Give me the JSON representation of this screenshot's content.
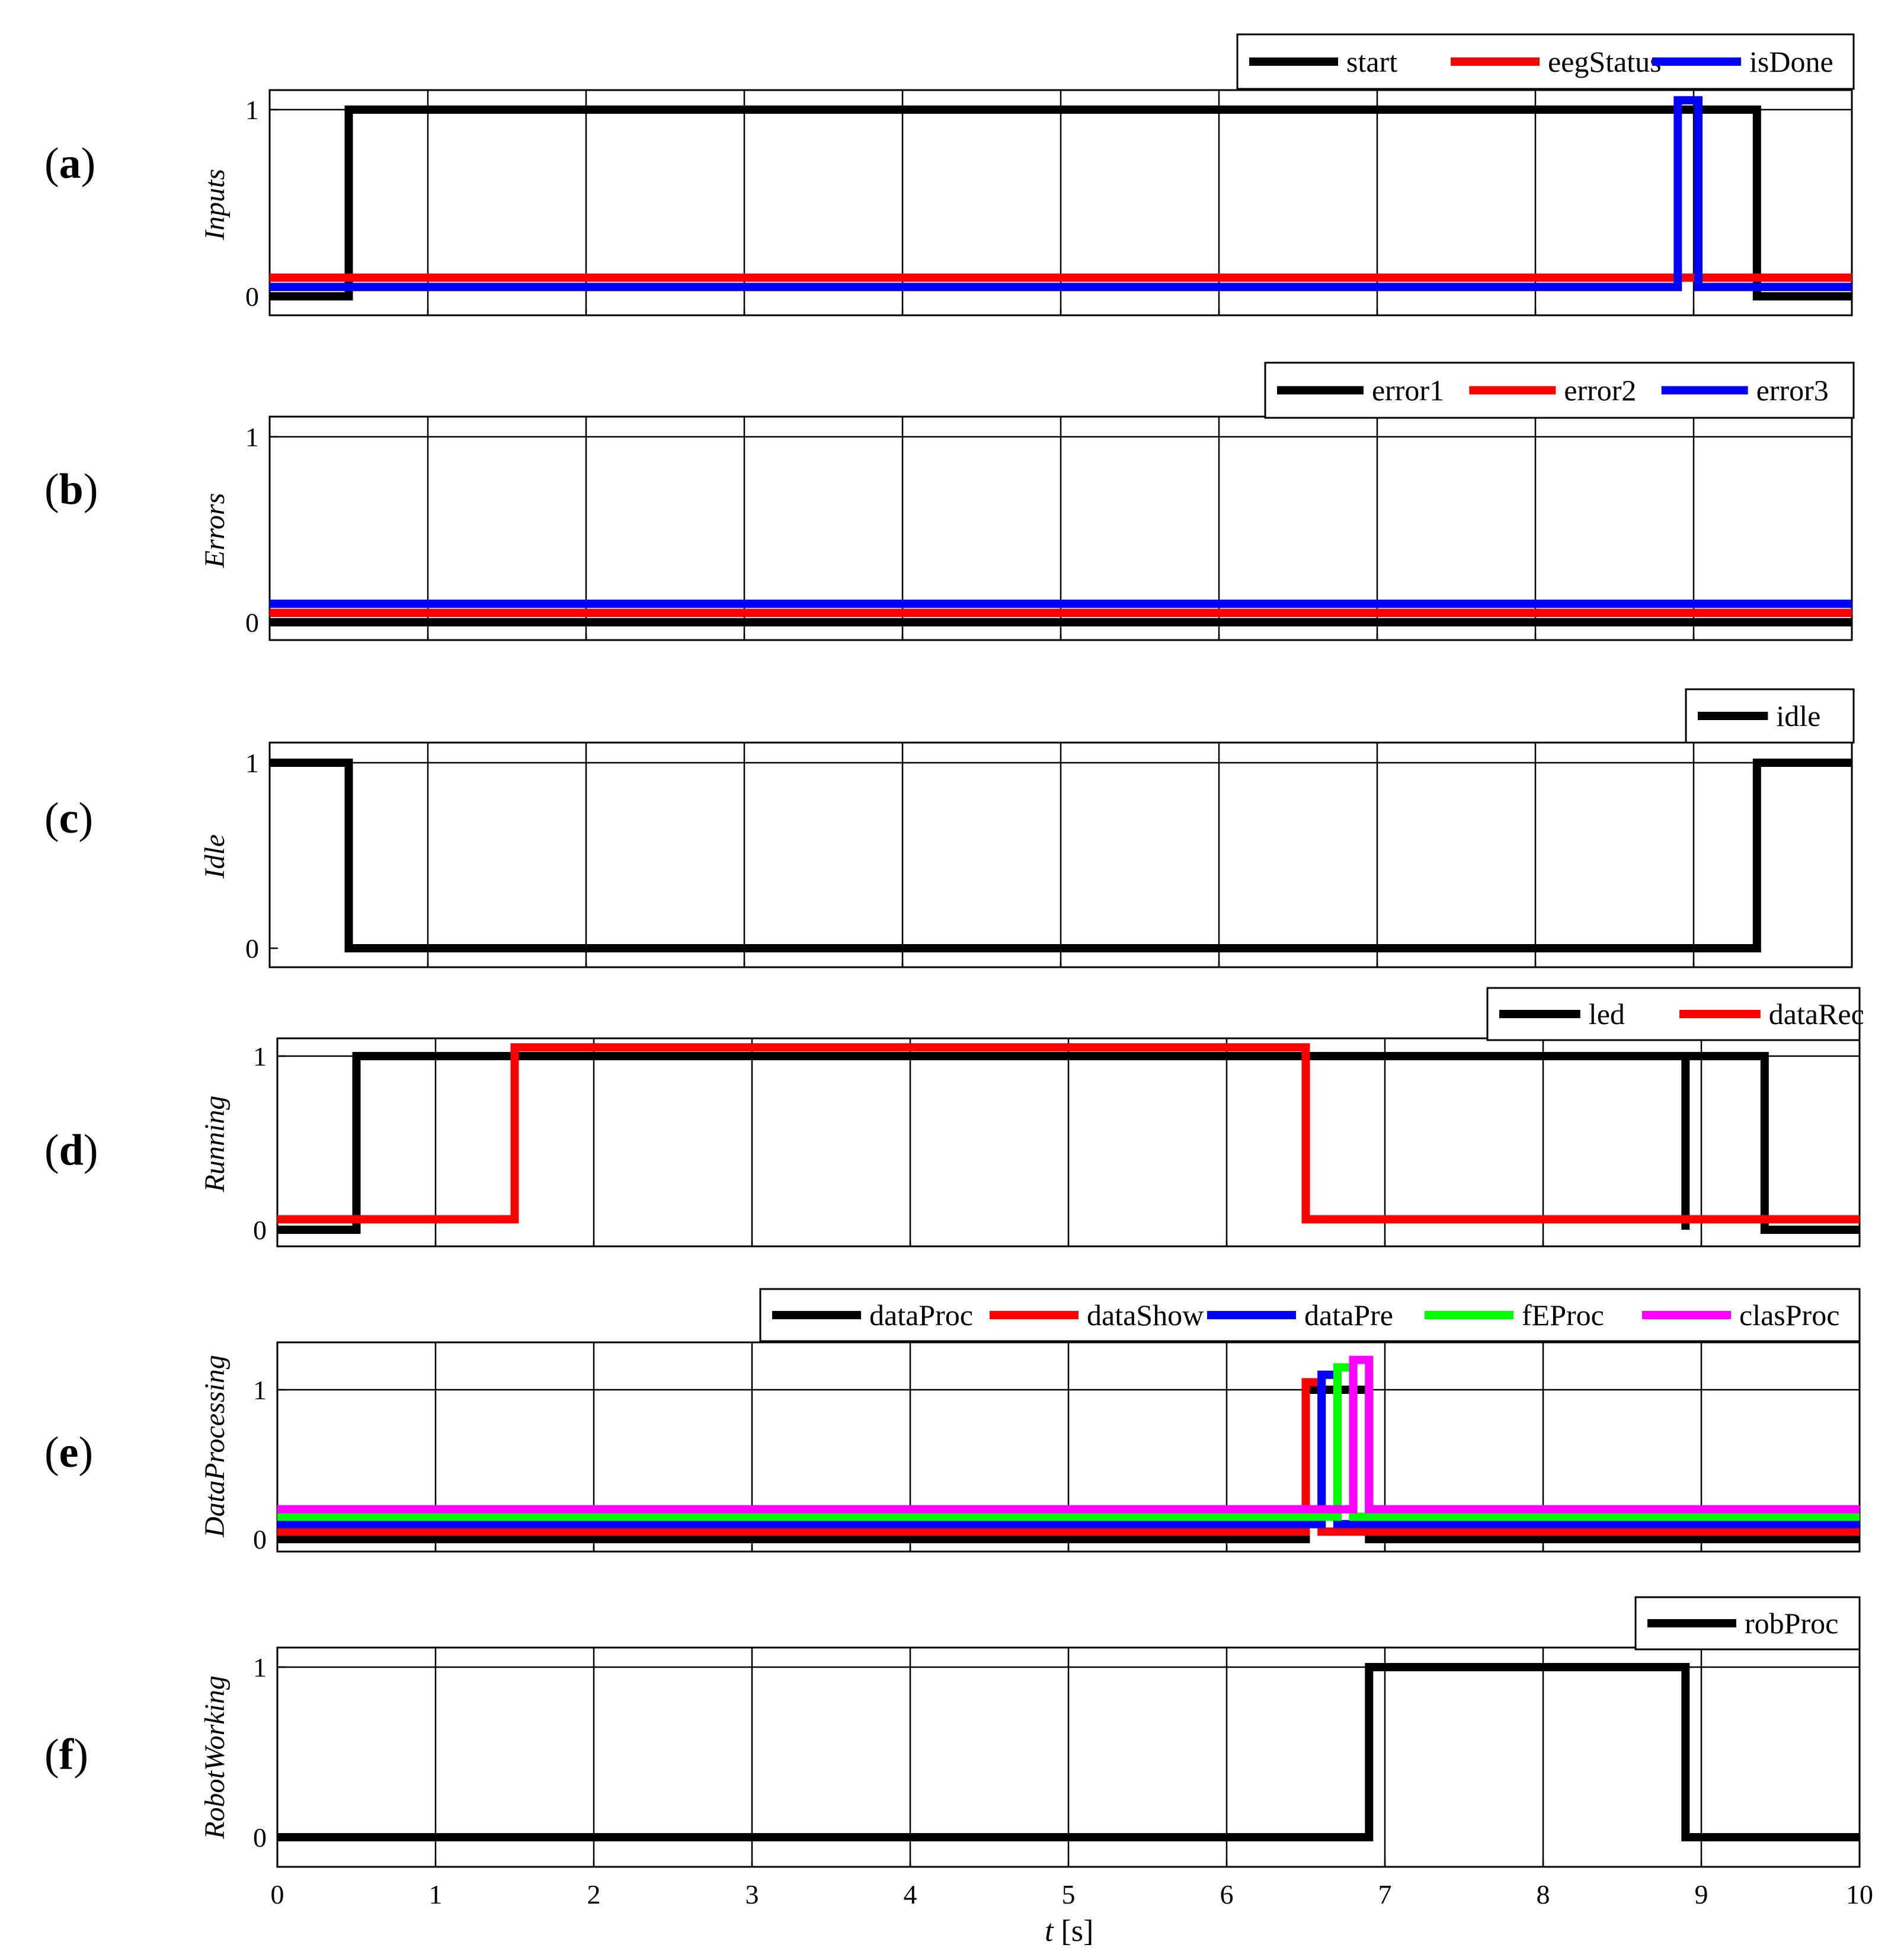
{
  "chart_data": [
    {
      "type": "line",
      "panel_label": "(a)",
      "ylabel": "Inputs",
      "xlim": [
        0,
        10
      ],
      "ylim": [
        0,
        1
      ],
      "y_ticks": [
        "0",
        "1"
      ],
      "grid": true,
      "legend_position": "top-right",
      "series": [
        {
          "name": "start",
          "color": "#000000",
          "points": [
            [
              0,
              0
            ],
            [
              0.5,
              0
            ],
            [
              0.5,
              1
            ],
            [
              9.4,
              1
            ],
            [
              9.4,
              0
            ],
            [
              10,
              0
            ]
          ]
        },
        {
          "name": "eegStatus",
          "color": "#ff0000",
          "points": [
            [
              0,
              0.1
            ],
            [
              10,
              0.1
            ]
          ]
        },
        {
          "name": "isDone",
          "color": "#0000ff",
          "points": [
            [
              0,
              0.05
            ],
            [
              8.9,
              0.05
            ],
            [
              8.9,
              1.05
            ],
            [
              9.03,
              1.05
            ],
            [
              9.03,
              0.05
            ],
            [
              10,
              0.05
            ]
          ]
        }
      ]
    },
    {
      "type": "line",
      "panel_label": "(b)",
      "ylabel": "Errors",
      "xlim": [
        0,
        10
      ],
      "ylim": [
        0,
        1
      ],
      "y_ticks": [
        "0",
        "1"
      ],
      "grid": true,
      "legend_position": "top-right",
      "series": [
        {
          "name": "error1",
          "color": "#000000",
          "points": [
            [
              0,
              0
            ],
            [
              10,
              0
            ]
          ]
        },
        {
          "name": "error2",
          "color": "#ff0000",
          "points": [
            [
              0,
              0.05
            ],
            [
              10,
              0.05
            ]
          ]
        },
        {
          "name": "error3",
          "color": "#0000ff",
          "points": [
            [
              0,
              0.1
            ],
            [
              10,
              0.1
            ]
          ]
        }
      ]
    },
    {
      "type": "line",
      "panel_label": "(c)",
      "ylabel": "Idle",
      "xlim": [
        0,
        10
      ],
      "ylim": [
        0,
        1
      ],
      "y_ticks": [
        "0",
        "1"
      ],
      "grid": true,
      "legend_position": "top-right",
      "series": [
        {
          "name": "idle",
          "color": "#000000",
          "points": [
            [
              0,
              1
            ],
            [
              0.5,
              1
            ],
            [
              0.5,
              0
            ],
            [
              9.4,
              0
            ],
            [
              9.4,
              1
            ],
            [
              10,
              1
            ]
          ]
        }
      ]
    },
    {
      "type": "line",
      "panel_label": "(d)",
      "ylabel": "Running",
      "xlim": [
        0,
        10
      ],
      "ylim": [
        0,
        1
      ],
      "y_ticks": [
        "0",
        "1"
      ],
      "grid": true,
      "legend_position": "top-right",
      "series": [
        {
          "name": "led",
          "color": "#000000",
          "points": [
            [
              0,
              0
            ],
            [
              0.5,
              0
            ],
            [
              0.5,
              1
            ],
            [
              8.9,
              1
            ],
            [
              8.9,
              0
            ],
            [
              8.9,
              0
            ],
            [
              8.9,
              1
            ],
            [
              9.4,
              1
            ],
            [
              9.4,
              0
            ],
            [
              10,
              0
            ]
          ]
        },
        {
          "name": "dataRec",
          "color": "#ff0000",
          "points": [
            [
              0,
              0.06
            ],
            [
              1.5,
              0.06
            ],
            [
              1.5,
              1.05
            ],
            [
              6.5,
              1.05
            ],
            [
              6.5,
              0.06
            ],
            [
              10,
              0.06
            ]
          ]
        }
      ]
    },
    {
      "type": "line",
      "panel_label": "(e)",
      "ylabel": "DataProcessing",
      "xlim": [
        0,
        10
      ],
      "ylim": [
        0,
        1
      ],
      "y_ticks": [
        "0",
        "1"
      ],
      "grid": true,
      "legend_position": "top-right",
      "series": [
        {
          "name": "dataProc",
          "color": "#000000",
          "points": [
            [
              0,
              0
            ],
            [
              6.5,
              0
            ],
            [
              6.5,
              1
            ],
            [
              6.9,
              1
            ],
            [
              6.9,
              0
            ],
            [
              10,
              0
            ]
          ]
        },
        {
          "name": "dataShow",
          "color": "#ff0000",
          "points": [
            [
              0,
              0.05
            ],
            [
              6.5,
              0.05
            ],
            [
              6.5,
              1.05
            ],
            [
              6.6,
              1.05
            ],
            [
              6.6,
              0.05
            ],
            [
              10,
              0.05
            ]
          ]
        },
        {
          "name": "dataPre",
          "color": "#0000ff",
          "points": [
            [
              0,
              0.1
            ],
            [
              6.6,
              0.1
            ],
            [
              6.6,
              1.1
            ],
            [
              6.7,
              1.1
            ],
            [
              6.7,
              0.1
            ],
            [
              10,
              0.1
            ]
          ]
        },
        {
          "name": "fEProc",
          "color": "#00ff00",
          "points": [
            [
              0,
              0.15
            ],
            [
              6.7,
              0.15
            ],
            [
              6.7,
              1.15
            ],
            [
              6.8,
              1.15
            ],
            [
              6.8,
              0.15
            ],
            [
              10,
              0.15
            ]
          ]
        },
        {
          "name": "clasProc",
          "color": "#ff00ff",
          "points": [
            [
              0,
              0.2
            ],
            [
              6.8,
              0.2
            ],
            [
              6.8,
              1.2
            ],
            [
              6.9,
              1.2
            ],
            [
              6.9,
              0.2
            ],
            [
              10,
              0.2
            ]
          ]
        }
      ]
    },
    {
      "type": "line",
      "panel_label": "(f)",
      "ylabel": "RobotWorking",
      "xlabel": "t [s]",
      "xlim": [
        0,
        10
      ],
      "ylim": [
        0,
        1
      ],
      "x_ticks": [
        "0",
        "1",
        "2",
        "3",
        "4",
        "5",
        "6",
        "7",
        "8",
        "9",
        "10"
      ],
      "y_ticks": [
        "0",
        "1"
      ],
      "grid": true,
      "legend_position": "top-right",
      "series": [
        {
          "name": "robProc",
          "color": "#000000",
          "points": [
            [
              0,
              0
            ],
            [
              6.9,
              0
            ],
            [
              6.9,
              1
            ],
            [
              8.9,
              1
            ],
            [
              8.9,
              0
            ],
            [
              10,
              0
            ]
          ]
        }
      ]
    }
  ]
}
